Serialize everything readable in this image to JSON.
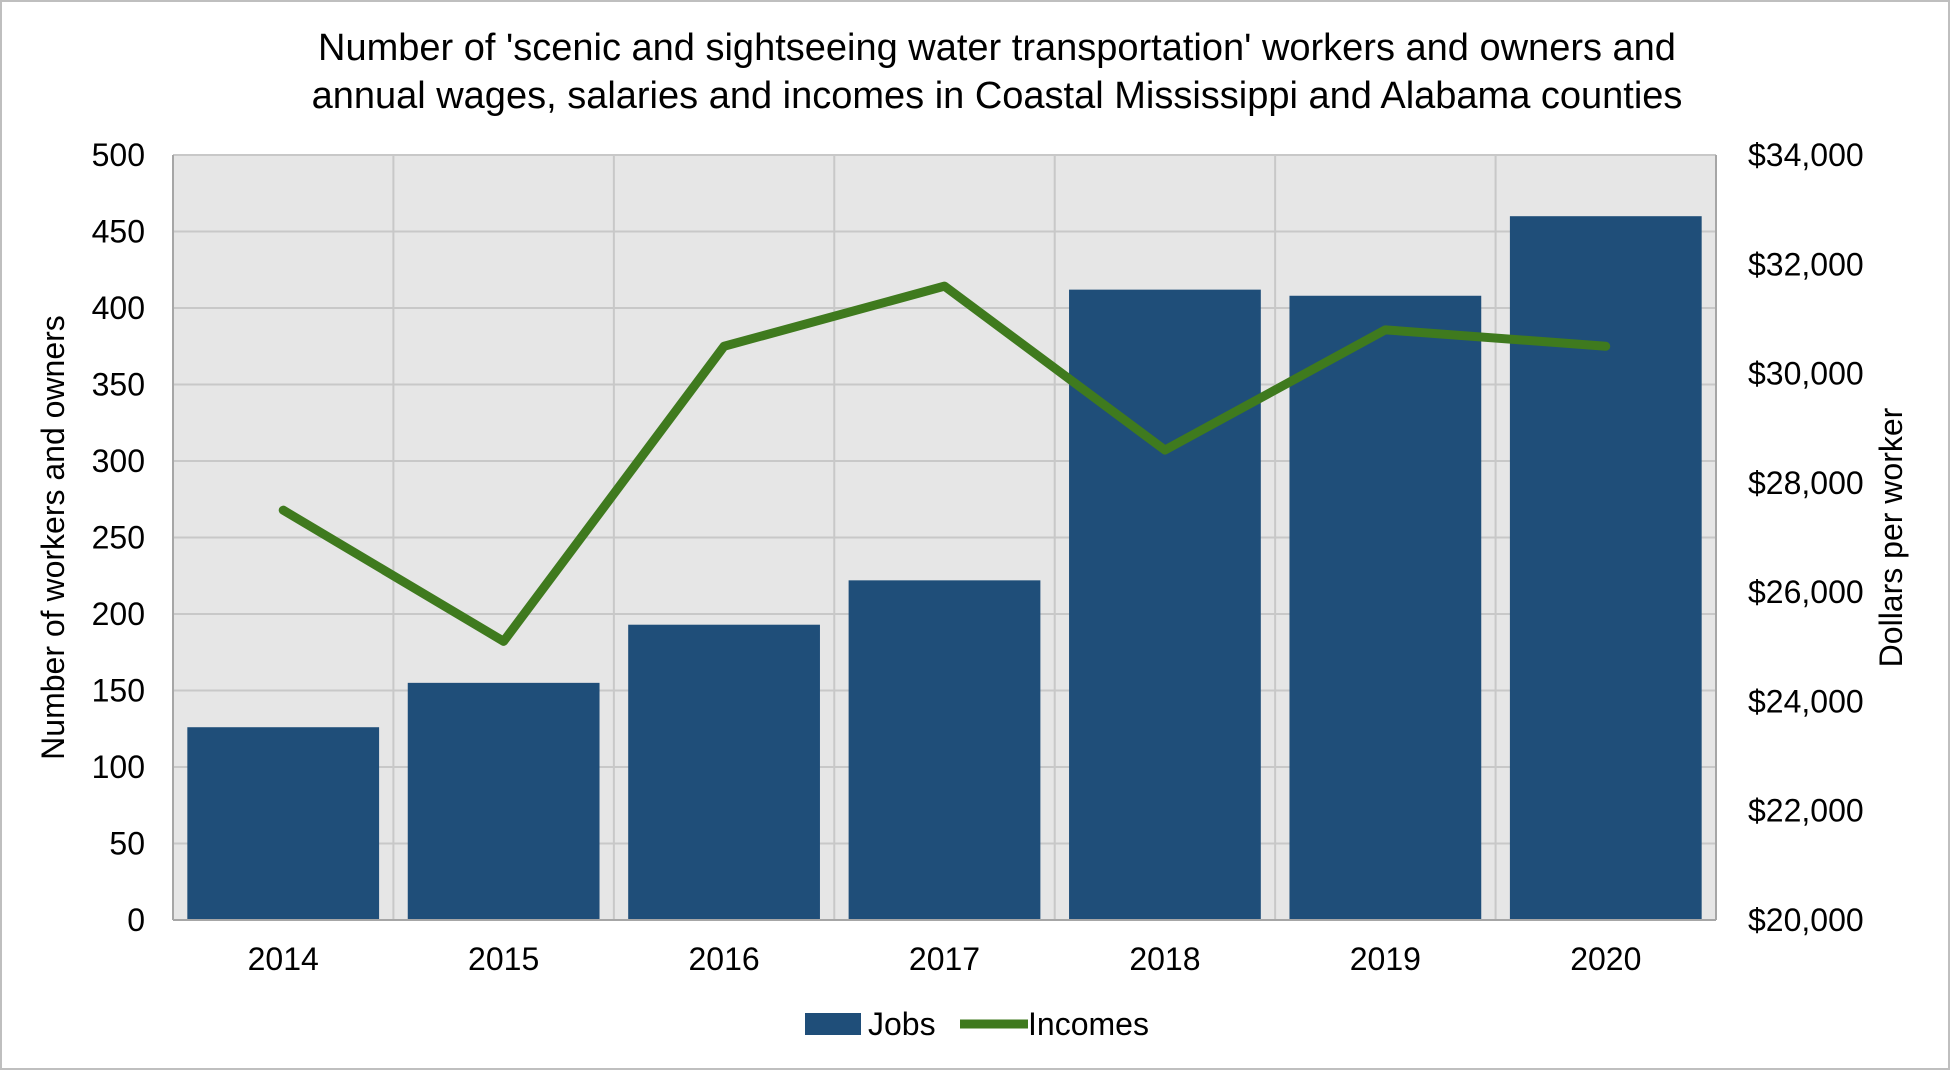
{
  "chart_data": {
    "type": "bar",
    "title_lines": [
      "Number of 'scenic and sightseeing water transportation' workers and owners and",
      "annual wages, salaries and incomes in Coastal Mississippi and Alabama counties"
    ],
    "categories": [
      "2014",
      "2015",
      "2016",
      "2017",
      "2018",
      "2019",
      "2020"
    ],
    "series": [
      {
        "name": "Jobs",
        "type": "bar",
        "axis": "left",
        "color": "#1f4e79",
        "values": [
          126,
          155,
          193,
          222,
          412,
          408,
          460
        ]
      },
      {
        "name": "Incomes",
        "type": "line",
        "axis": "right",
        "color": "#3f7a1e",
        "values": [
          27500,
          25100,
          30500,
          31600,
          28600,
          30800,
          30500
        ]
      }
    ],
    "ylabel": "Number of workers and owners",
    "y2label": "Dollars per worker",
    "ylim": [
      0,
      500
    ],
    "y2lim": [
      20000,
      34000
    ],
    "y_ticks": [
      "0",
      "50",
      "100",
      "150",
      "200",
      "250",
      "300",
      "350",
      "400",
      "450",
      "500"
    ],
    "y2_ticks": [
      "$20,000",
      "$22,000",
      "$24,000",
      "$26,000",
      "$28,000",
      "$30,000",
      "$32,000",
      "$34,000"
    ],
    "grid": true,
    "legend_position": "bottom",
    "plot_background": "#e6e6e6",
    "grid_color": "#c8c8c8"
  }
}
